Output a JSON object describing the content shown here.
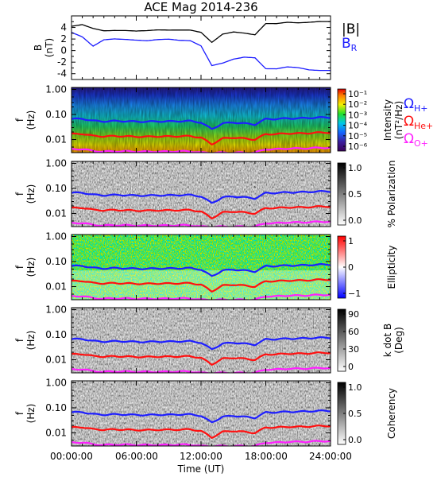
{
  "chart_data": {
    "type": "line",
    "title": "ACE Mag 2014-236",
    "xlabel": "Time (UT)",
    "x_ticks": [
      "00:00:00",
      "06:00:00",
      "12:00:00",
      "18:00:00",
      "24:00:00"
    ],
    "xlim": [
      0,
      24
    ],
    "colors": {
      "B_total": "#000000",
      "B_R": "#1a1aff",
      "H_plus": "#1e1eff",
      "He_plus": "#ff1010",
      "O_plus": "#ff20ff"
    },
    "panels": [
      {
        "id": "field",
        "ylabel_line1": "B",
        "ylabel_line2": "(nT)",
        "ylim": [
          -5,
          6
        ],
        "y_ticks": [
          "4",
          "2",
          "0",
          "-2",
          "-4"
        ],
        "legend": {
          "total": "|B|",
          "radial": "B",
          "radial_sub": "R"
        },
        "series": [
          {
            "name": "|B|",
            "x": [
              0,
              1,
              2,
              3,
              4,
              5,
              6,
              7,
              8,
              9,
              10,
              11,
              12,
              13,
              14,
              15,
              16,
              17,
              18,
              19,
              20,
              21,
              22,
              23,
              24
            ],
            "values": [
              4.2,
              4.6,
              4.0,
              3.6,
              3.6,
              3.5,
              3.3,
              3.3,
              3.4,
              3.4,
              3.5,
              3.6,
              3.3,
              1.6,
              3.0,
              3.3,
              3.0,
              2.6,
              4.5,
              4.5,
              4.8,
              4.8,
              5.0,
              5.2,
              5.2
            ]
          },
          {
            "name": "B_R",
            "x": [
              0,
              1,
              2,
              3,
              4,
              5,
              6,
              7,
              8,
              9,
              10,
              11,
              12,
              13,
              14,
              15,
              16,
              17,
              18,
              19,
              20,
              21,
              22,
              23,
              24
            ],
            "values": [
              3.0,
              2.3,
              0.8,
              2.0,
              2.2,
              2.1,
              1.9,
              1.7,
              1.8,
              1.8,
              1.6,
              1.6,
              0.8,
              -2.5,
              -2.0,
              -1.3,
              -1.0,
              -1.2,
              -3.2,
              -3.3,
              -3.0,
              -3.1,
              -3.4,
              -3.4,
              -3.3
            ]
          }
        ]
      },
      {
        "id": "intensity",
        "ylabel_line1": "f",
        "ylabel_line2": "(Hz)",
        "y_log": true,
        "ylim": [
          0.003,
          1.2
        ],
        "y_ticks": [
          "1.00",
          "0.10",
          "0.01"
        ],
        "colorbar": {
          "title_line1": "Intensity",
          "title_line2": "(nT²/Hz)",
          "ticks": [
            "10⁻¹",
            "10⁻²",
            "10⁻³",
            "10⁻⁴",
            "10⁻⁵",
            "10⁻⁶"
          ]
        },
        "gyro_legend": [
          {
            "symbol": "Ω",
            "sub": "H+",
            "color": "#1e1eff"
          },
          {
            "symbol": "Ω",
            "sub": "He+",
            "color": "#ff1010"
          },
          {
            "symbol": "Ω",
            "sub": "O+",
            "color": "#ff20ff"
          }
        ]
      },
      {
        "id": "polarization",
        "ylabel_line1": "f",
        "ylabel_line2": "(Hz)",
        "y_log": true,
        "ylim": [
          0.003,
          1.2
        ],
        "y_ticks": [
          "1.00",
          "0.10",
          "0.01"
        ],
        "colorbar": {
          "title_line1": "% Polarization",
          "title_line2": "",
          "ticks": [
            "1.0",
            "0.5",
            "0.0"
          ]
        }
      },
      {
        "id": "ellipticity",
        "ylabel_line1": "f",
        "ylabel_line2": "(Hz)",
        "y_log": true,
        "ylim": [
          0.003,
          1.2
        ],
        "y_ticks": [
          "1.00",
          "0.10",
          "0.01"
        ],
        "colorbar": {
          "title_line1": "Ellipticity",
          "title_line2": "",
          "ticks": [
            "1",
            "0",
            "−1"
          ]
        }
      },
      {
        "id": "kdotb",
        "ylabel_line1": "f",
        "ylabel_line2": "(Hz)",
        "y_log": true,
        "ylim": [
          0.003,
          1.2
        ],
        "y_ticks": [
          "1.00",
          "0.10",
          "0.01"
        ],
        "colorbar": {
          "title_line1": "k dot B",
          "title_line2": "(Deg)",
          "ticks": [
            "90",
            "60",
            "30",
            "0"
          ]
        }
      },
      {
        "id": "coherency",
        "ylabel_line1": "f",
        "ylabel_line2": "(Hz)",
        "y_log": true,
        "ylim": [
          0.003,
          1.2
        ],
        "y_ticks": [
          "1.00",
          "0.10",
          "0.01"
        ],
        "colorbar": {
          "title_line1": "Coherency",
          "title_line2": "",
          "ticks": [
            "1.0",
            "0.5",
            "0.0"
          ]
        }
      }
    ],
    "gyrofrequency_curves": {
      "x": [
        0,
        1,
        2,
        3,
        4,
        5,
        6,
        7,
        8,
        9,
        10,
        11,
        12,
        13,
        14,
        15,
        16,
        17,
        18,
        19,
        20,
        21,
        22,
        23,
        24
      ],
      "H_plus_hz": [
        0.066,
        0.068,
        0.056,
        0.053,
        0.055,
        0.054,
        0.052,
        0.052,
        0.053,
        0.053,
        0.054,
        0.055,
        0.048,
        0.026,
        0.044,
        0.048,
        0.044,
        0.04,
        0.066,
        0.066,
        0.07,
        0.07,
        0.073,
        0.076,
        0.076
      ],
      "He_plus_hz": [
        0.0165,
        0.017,
        0.014,
        0.0133,
        0.0138,
        0.0135,
        0.013,
        0.013,
        0.0133,
        0.0133,
        0.0135,
        0.0138,
        0.012,
        0.0065,
        0.011,
        0.012,
        0.011,
        0.01,
        0.0165,
        0.0165,
        0.0175,
        0.0175,
        0.018,
        0.019,
        0.019
      ],
      "O_plus_hz": [
        0.0041,
        0.0042,
        0.0035,
        0.0033,
        0.0034,
        0.0034,
        0.0033,
        0.0033,
        0.0033,
        0.0033,
        0.0034,
        0.0034,
        0.003,
        0.003,
        0.003,
        0.003,
        0.003,
        0.003,
        0.0041,
        0.0041,
        0.0044,
        0.0044,
        0.0045,
        0.0047,
        0.0047
      ]
    }
  }
}
